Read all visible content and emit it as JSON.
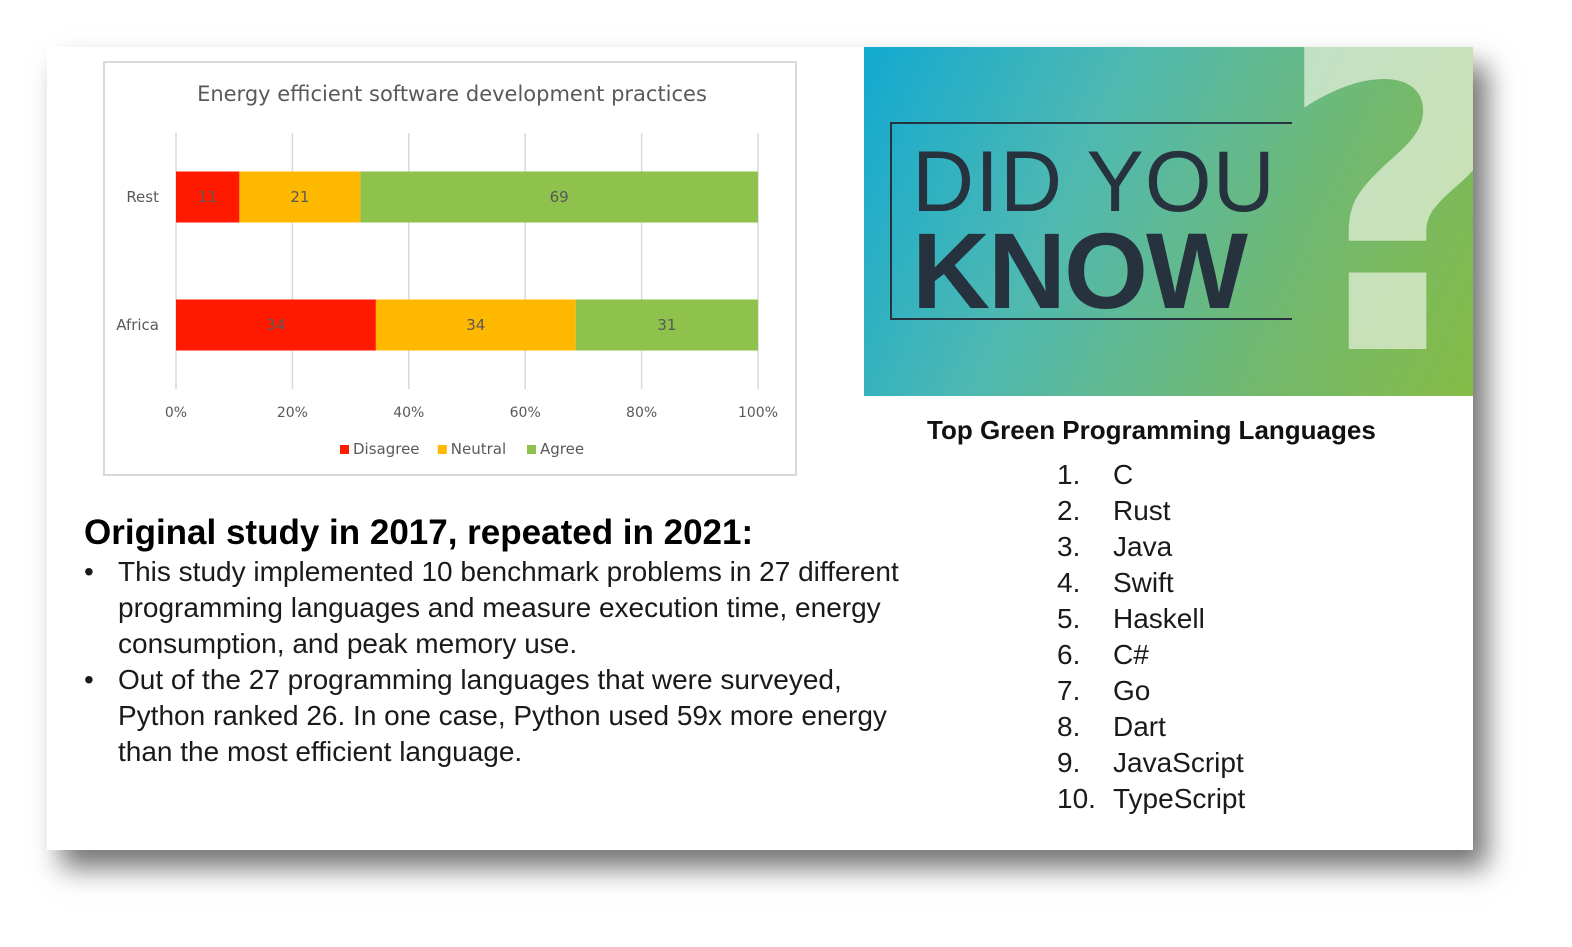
{
  "chart_data": {
    "type": "bar",
    "orientation": "horizontal",
    "stacked": "percent",
    "title": "Energy efficient software development practices",
    "categories": [
      "Rest",
      "Africa"
    ],
    "series": [
      {
        "name": "Disagree",
        "color": "#ff1a00",
        "values": [
          11,
          34
        ]
      },
      {
        "name": "Neutral",
        "color": "#ffb800",
        "values": [
          21,
          34
        ]
      },
      {
        "name": "Agree",
        "color": "#8ec24c",
        "values": [
          69,
          31
        ]
      }
    ],
    "xlim": [
      0,
      100
    ],
    "xticks": [
      "0%",
      "20%",
      "40%",
      "60%",
      "80%",
      "100%"
    ],
    "legend": "bottom",
    "grid": true
  },
  "study": {
    "title": "Original study in 2017, repeated in 2021:",
    "bullets": [
      "This study implemented 10 benchmark problems in 27 different programming languages and measure execution time, energy consumption, and peak memory use.",
      "Out of the 27 programming languages that were surveyed, Python ranked 26. In one case, Python used 59x more energy than the most efficient language."
    ]
  },
  "banner": {
    "line1": "DID YOU",
    "line2": "KNOW",
    "mark": "?"
  },
  "languages": {
    "title": "Top Green Programming Languages",
    "items": [
      {
        "num": "1.",
        "name": "C"
      },
      {
        "num": "2.",
        "name": "Rust"
      },
      {
        "num": "3.",
        "name": "Java"
      },
      {
        "num": "4.",
        "name": "Swift"
      },
      {
        "num": "5.",
        "name": "Haskell"
      },
      {
        "num": "6.",
        "name": "C#"
      },
      {
        "num": "7.",
        "name": "Go"
      },
      {
        "num": "8.",
        "name": "Dart"
      },
      {
        "num": "9.",
        "name": "JavaScript"
      },
      {
        "num": "10.",
        "name": "TypeScript"
      }
    ]
  }
}
